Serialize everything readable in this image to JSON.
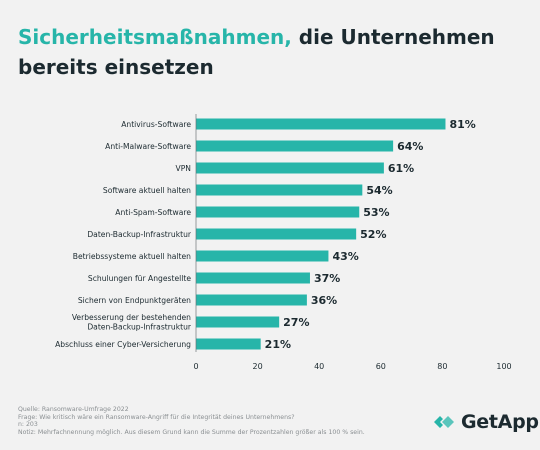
{
  "title": {
    "highlight": "Sicherheitsmaßnahmen,",
    "rest_line1": " die Unternehmen",
    "line2": "bereits einsetzen"
  },
  "colors": {
    "bar": "#27b5a9",
    "accent": "#27b5a9",
    "text": "#1c2a30",
    "axis": "#8a8f92",
    "background": "#f2f2f2"
  },
  "chart_data": {
    "type": "bar",
    "orientation": "horizontal",
    "categories": [
      "Antivirus-Software",
      "Anti-Malware-Software",
      "VPN",
      "Software aktuell halten",
      "Anti-Spam-Software",
      "Daten-Backup-Infrastruktur",
      "Betriebssysteme aktuell halten",
      "Schulungen für Angestellte",
      "Sichern von Endpunktgeräten",
      "Verbesserung der bestehenden\nDaten-Backup-Infrastruktur",
      "Abschluss einer Cyber-Versicherung"
    ],
    "values": [
      81,
      64,
      61,
      54,
      53,
      52,
      43,
      37,
      36,
      27,
      21
    ],
    "value_labels": [
      "81%",
      "64%",
      "61%",
      "54%",
      "53%",
      "52%",
      "43%",
      "37%",
      "36%",
      "27%",
      "21%"
    ],
    "xticks": [
      "0",
      "20",
      "40",
      "60",
      "80",
      "100"
    ],
    "xlim": [
      0,
      100
    ],
    "grid": false
  },
  "footer": {
    "source": "Quelle: Ransomware-Umfrage 2022",
    "question": "Frage: Wie kritisch wäre ein Ransomware-Angriff für die Integrität deines Unternehmens?",
    "sample": "n: 203",
    "note": "Notiz: Mehrfachnennung möglich. Aus diesem Grund kann die Summe der Prozentzahlen größer als 100 % sein."
  },
  "logo": {
    "text": "GetApp",
    "icon": "getapp-arrows-icon"
  }
}
